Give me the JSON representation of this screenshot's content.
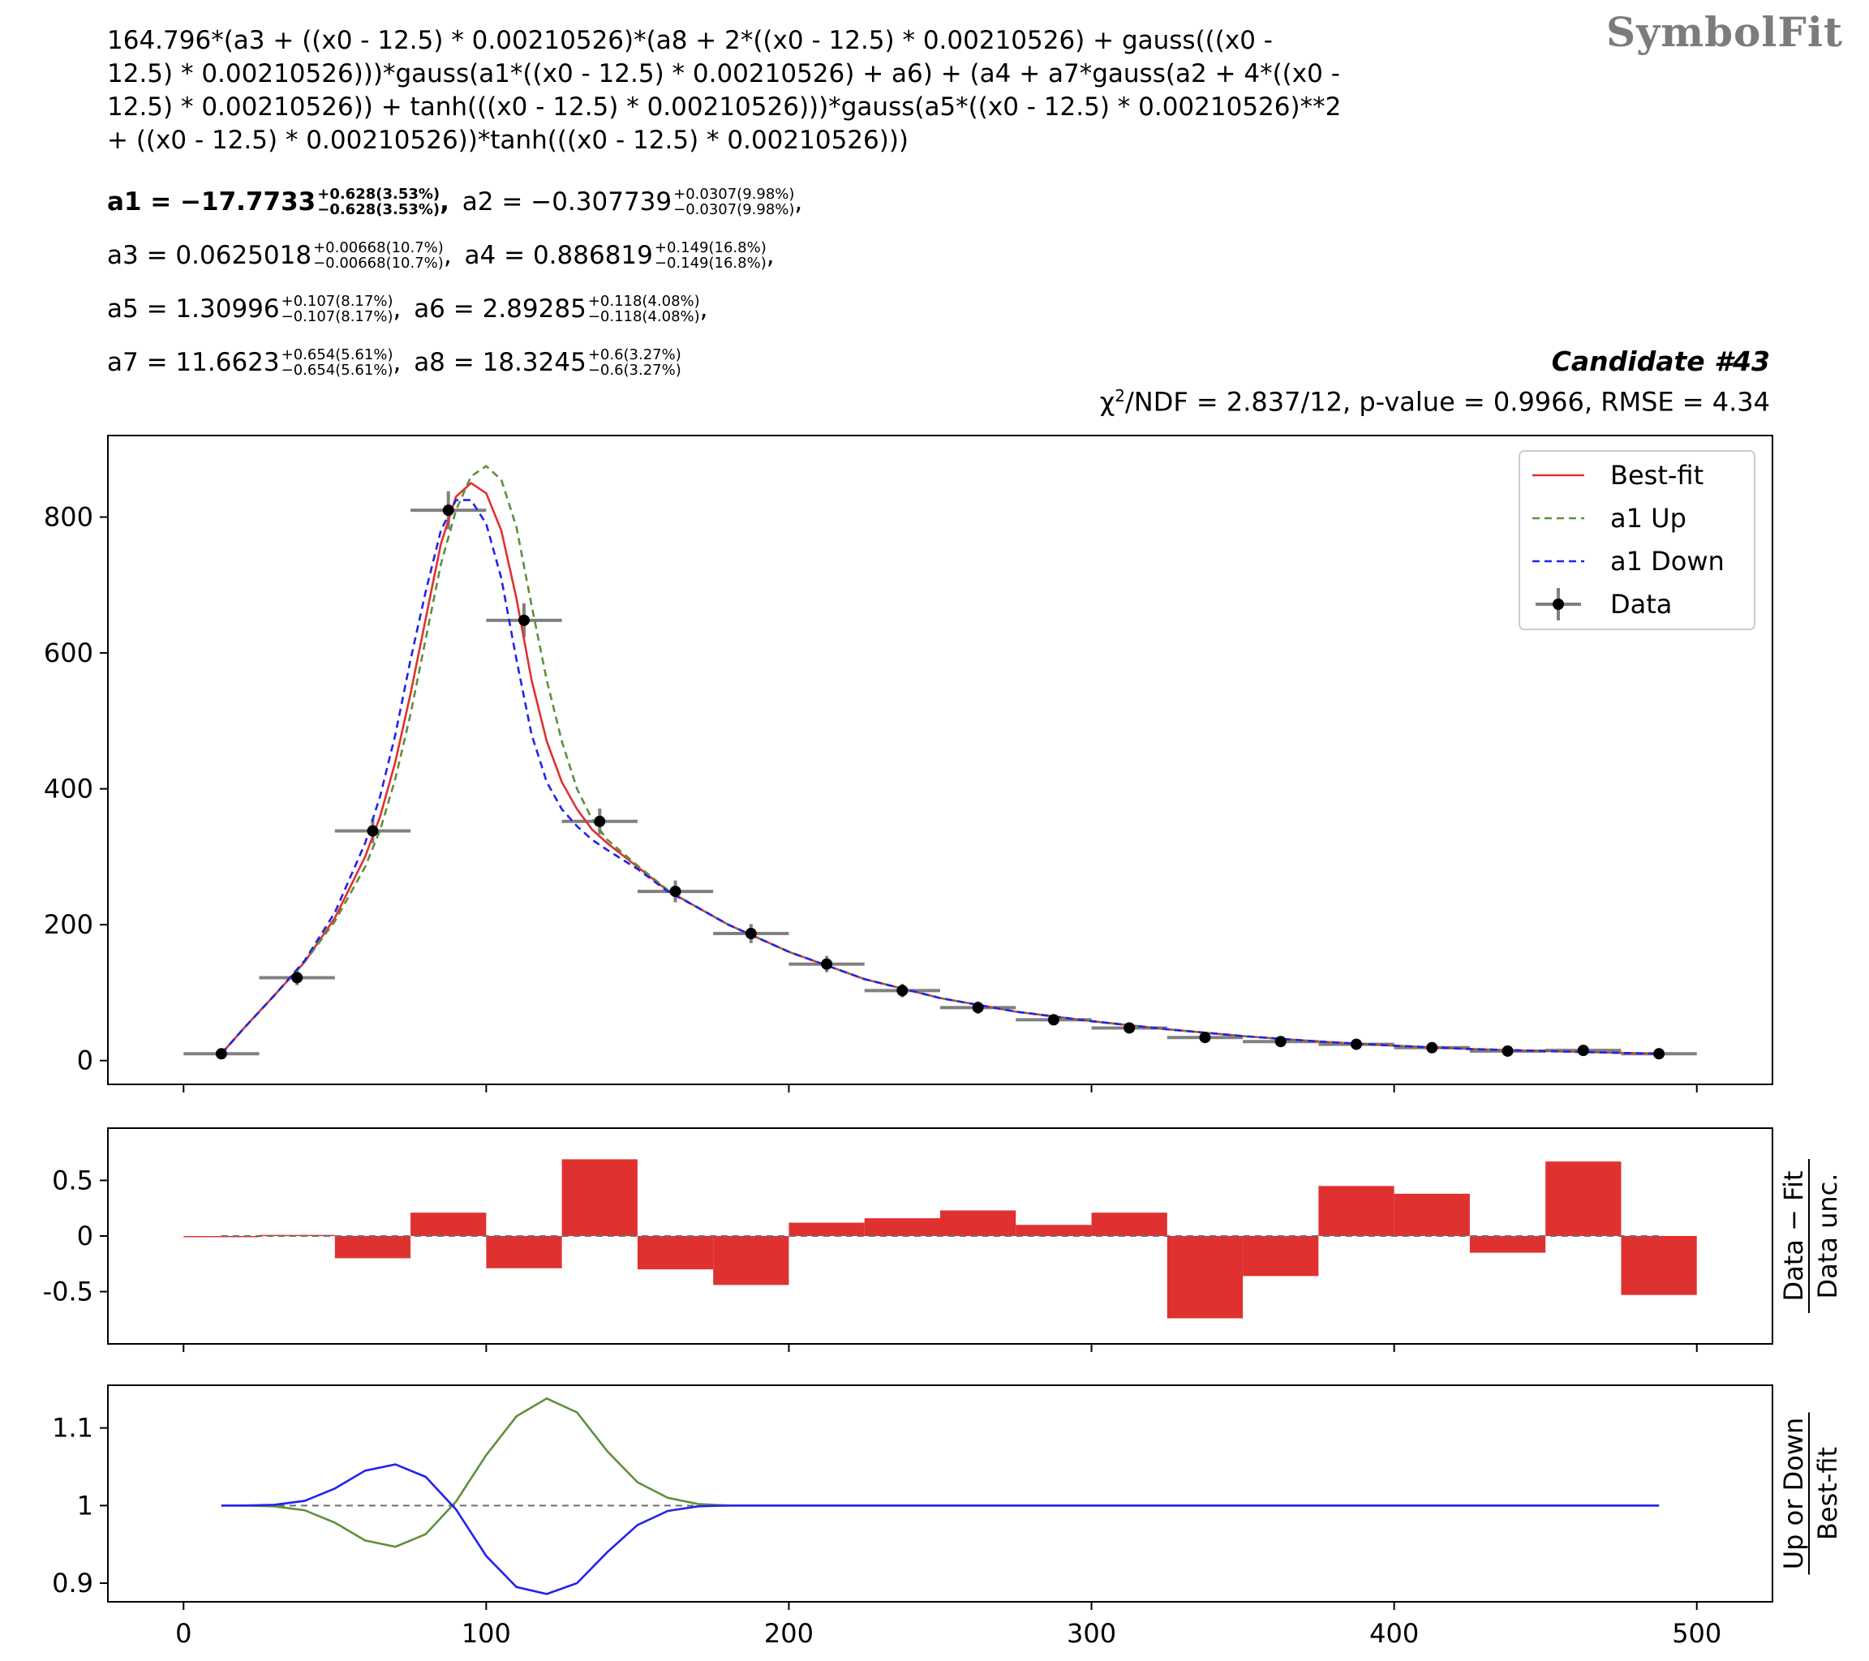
{
  "watermark": "SymbolFit",
  "expression": "164.796*(a3 + ((x0 - 12.5) * 0.00210526)*(a8 + 2*((x0 - 12.5) * 0.00210526) + gauss(((x0 -\n12.5) * 0.00210526)))*gauss(a1*((x0 - 12.5) * 0.00210526) + a6) + (a4 + a7*gauss(a2 + 4*((x0 -\n12.5) * 0.00210526)) + tanh(((x0 - 12.5) * 0.00210526)))*gauss(a5*((x0 - 12.5) * 0.00210526)**2\n+ ((x0 - 12.5) * 0.00210526))*tanh(((x0 - 12.5) * 0.00210526)))",
  "parameters": [
    {
      "name": "a1",
      "value": "−17.7733",
      "up": "+0.628(3.53%)",
      "down": "−0.628(3.53%)",
      "bold": true
    },
    {
      "name": "a2",
      "value": "−0.307739",
      "up": "+0.0307(9.98%)",
      "down": "−0.0307(9.98%)",
      "bold": false
    },
    {
      "name": "a3",
      "value": "0.0625018",
      "up": "+0.00668(10.7%)",
      "down": "−0.00668(10.7%)",
      "bold": false
    },
    {
      "name": "a4",
      "value": "0.886819",
      "up": "+0.149(16.8%)",
      "down": "−0.149(16.8%)",
      "bold": false
    },
    {
      "name": "a5",
      "value": "1.30996",
      "up": "+0.107(8.17%)",
      "down": "−0.107(8.17%)",
      "bold": false
    },
    {
      "name": "a6",
      "value": "2.89285",
      "up": "+0.118(4.08%)",
      "down": "−0.118(4.08%)",
      "bold": false
    },
    {
      "name": "a7",
      "value": "11.6623",
      "up": "+0.654(5.61%)",
      "down": "−0.654(5.61%)",
      "bold": false
    },
    {
      "name": "a8",
      "value": "18.3245",
      "up": "+0.6(3.27%)",
      "down": "−0.6(3.27%)",
      "bold": false
    }
  ],
  "candidate": "Candidate #43",
  "stats": {
    "chi2_label": "χ",
    "chi2_sup": "2",
    "text": "/NDF = 2.837/12, p-value = 0.9966, RMSE = 4.34"
  },
  "colors": {
    "best_fit": "#e03131",
    "up": "#5f8f3a",
    "down": "#2222ee",
    "data": "#000000",
    "errbar": "#808080",
    "residual": "#e03131"
  },
  "chart_data": [
    {
      "type": "line",
      "panel": "main",
      "xlim": [
        -25,
        525
      ],
      "ylim": [
        -35,
        920
      ],
      "yticks": [
        0,
        200,
        400,
        600,
        800
      ],
      "xticks": [
        0,
        100,
        200,
        300,
        400,
        500
      ],
      "legend": {
        "placement": "top-right",
        "entries": [
          "Best-fit",
          "a1 Up",
          "a1 Down",
          "Data"
        ]
      },
      "data": {
        "x": [
          12.5,
          37.5,
          62.5,
          87.5,
          112.5,
          137.5,
          162.5,
          187.5,
          212.5,
          237.5,
          262.5,
          287.5,
          312.5,
          337.5,
          362.5,
          387.5,
          412.5,
          437.5,
          462.5,
          487.5
        ],
        "xerr": 12.5,
        "y": [
          10,
          122,
          338,
          810,
          648,
          352,
          249,
          187,
          142,
          103,
          78,
          60,
          48,
          34,
          28,
          24,
          19,
          14,
          15,
          10
        ],
        "yerr": [
          3,
          11,
          18,
          28,
          25,
          19,
          16,
          14,
          12,
          10,
          9,
          8,
          7,
          6,
          5,
          5,
          4,
          4,
          4,
          3
        ]
      },
      "series": [
        {
          "name": "Best-fit",
          "style": "solid",
          "x": [
            12.5,
            20,
            30,
            40,
            50,
            60,
            65,
            70,
            75,
            80,
            85,
            90,
            95,
            100,
            105,
            110,
            115,
            120,
            125,
            130,
            135,
            140,
            150,
            160,
            170,
            180,
            200,
            225,
            250,
            275,
            300,
            325,
            350,
            375,
            400,
            425,
            450,
            487.5
          ],
          "y": [
            10,
            48,
            96,
            145,
            210,
            300,
            360,
            440,
            540,
            650,
            760,
            830,
            850,
            835,
            780,
            680,
            560,
            470,
            410,
            370,
            340,
            320,
            285,
            250,
            225,
            200,
            160,
            120,
            92,
            72,
            58,
            46,
            36,
            28,
            22,
            17,
            14,
            10
          ]
        },
        {
          "name": "a1 Up",
          "style": "dashed",
          "x": [
            12.5,
            20,
            30,
            40,
            50,
            60,
            65,
            70,
            75,
            80,
            85,
            90,
            95,
            100,
            105,
            110,
            115,
            120,
            125,
            130,
            135,
            140,
            150,
            160,
            170,
            180,
            200,
            225,
            250,
            275,
            300,
            325,
            350,
            375,
            400,
            425,
            450,
            487.5
          ],
          "y": [
            10,
            48,
            96,
            145,
            205,
            285,
            340,
            415,
            510,
            620,
            730,
            810,
            860,
            875,
            855,
            785,
            670,
            560,
            470,
            400,
            355,
            325,
            287,
            251,
            225,
            200,
            160,
            120,
            92,
            72,
            58,
            46,
            36,
            28,
            22,
            17,
            14,
            10
          ]
        },
        {
          "name": "a1 Down",
          "style": "dashed",
          "x": [
            12.5,
            20,
            30,
            40,
            50,
            60,
            65,
            70,
            75,
            80,
            85,
            90,
            95,
            100,
            105,
            110,
            115,
            120,
            125,
            130,
            135,
            140,
            150,
            160,
            170,
            180,
            200,
            225,
            250,
            275,
            300,
            325,
            350,
            375,
            400,
            425,
            450,
            487.5
          ],
          "y": [
            10,
            48,
            96,
            147,
            218,
            320,
            390,
            480,
            590,
            690,
            780,
            825,
            825,
            790,
            710,
            590,
            480,
            410,
            370,
            345,
            325,
            310,
            282,
            249,
            225,
            200,
            160,
            120,
            92,
            72,
            58,
            46,
            36,
            28,
            22,
            17,
            14,
            10
          ]
        }
      ]
    },
    {
      "type": "bar",
      "panel": "residual",
      "ylabel_num": "Data − Fit",
      "ylabel_den": "Data unc.",
      "xlim": [
        -25,
        525
      ],
      "ylim": [
        -0.97,
        0.97
      ],
      "yticks": [
        0.5,
        0,
        -0.5
      ],
      "ytick_labels": [
        "0.5",
        "0",
        "-0.5"
      ],
      "bin_edges": [
        0,
        25,
        50,
        75,
        100,
        125,
        150,
        175,
        200,
        225,
        250,
        275,
        300,
        325,
        350,
        375,
        400,
        425,
        450,
        475,
        500
      ],
      "values": [
        -0.01,
        0.01,
        -0.2,
        0.21,
        -0.29,
        0.69,
        -0.3,
        -0.44,
        0.12,
        0.16,
        0.23,
        0.1,
        0.21,
        -0.74,
        -0.36,
        0.45,
        0.38,
        -0.15,
        0.67,
        -0.53
      ]
    },
    {
      "type": "line",
      "panel": "ratio",
      "ylabel_num": "Up or Down",
      "ylabel_den": "Best-fit",
      "xlim": [
        -25,
        525
      ],
      "ylim": [
        0.876,
        1.155
      ],
      "yticks": [
        1.1,
        1,
        0.9
      ],
      "ytick_labels": [
        "1.1",
        "1",
        "0.9"
      ],
      "xticks": [
        0,
        100,
        200,
        300,
        400,
        500
      ],
      "series": [
        {
          "name": "Up / Best-fit",
          "color_key": "up",
          "x": [
            12.5,
            20,
            30,
            40,
            50,
            60,
            70,
            80,
            90,
            100,
            110,
            120,
            130,
            140,
            150,
            160,
            170,
            180,
            200,
            250,
            300,
            400,
            487.5
          ],
          "y": [
            1.0,
            1.0,
            0.999,
            0.994,
            0.978,
            0.955,
            0.947,
            0.963,
            1.005,
            1.065,
            1.115,
            1.138,
            1.12,
            1.07,
            1.03,
            1.01,
            1.002,
            1.0,
            1.0,
            1.0,
            1.0,
            1.0,
            1.0
          ]
        },
        {
          "name": "Down / Best-fit",
          "color_key": "down",
          "x": [
            12.5,
            20,
            30,
            40,
            50,
            60,
            70,
            80,
            90,
            100,
            110,
            120,
            130,
            140,
            150,
            160,
            170,
            180,
            200,
            250,
            300,
            400,
            487.5
          ],
          "y": [
            1.0,
            1.0,
            1.001,
            1.006,
            1.022,
            1.045,
            1.053,
            1.037,
            0.995,
            0.935,
            0.895,
            0.886,
            0.9,
            0.94,
            0.975,
            0.993,
            0.999,
            1.0,
            1.0,
            1.0,
            1.0,
            1.0,
            1.0
          ]
        }
      ]
    }
  ]
}
